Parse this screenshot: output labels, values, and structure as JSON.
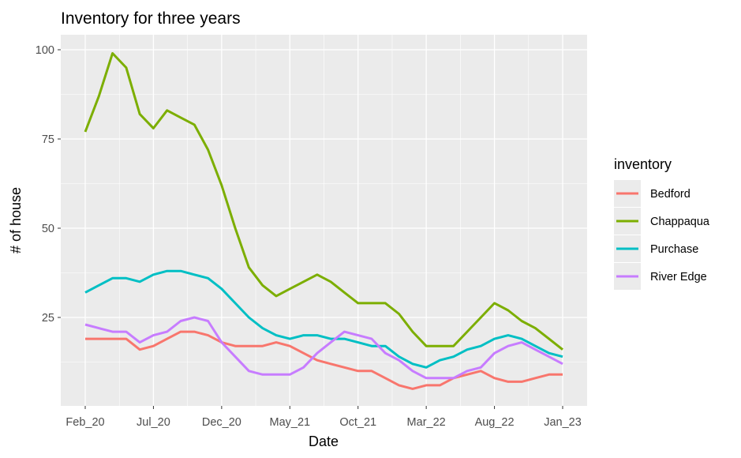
{
  "chart_data": {
    "type": "line",
    "title": "Inventory for three years",
    "xlabel": "Date",
    "ylabel": "# of house",
    "x_ticks": [
      "Feb_20",
      "Jul_20",
      "Dec_20",
      "May_21",
      "Oct_21",
      "Mar_22",
      "Aug_22",
      "Jan_23"
    ],
    "y_ticks": [
      25,
      50,
      75,
      100
    ],
    "ylim": [
      2.5,
      105
    ],
    "x_months": [
      "2020-02",
      "2020-03",
      "2020-04",
      "2020-05",
      "2020-06",
      "2020-07",
      "2020-08",
      "2020-09",
      "2020-10",
      "2020-11",
      "2020-12",
      "2021-01",
      "2021-02",
      "2021-03",
      "2021-04",
      "2021-05",
      "2021-06",
      "2021-07",
      "2021-08",
      "2021-09",
      "2021-10",
      "2021-11",
      "2021-12",
      "2022-01",
      "2022-02",
      "2022-03",
      "2022-04",
      "2022-05",
      "2022-06",
      "2022-07",
      "2022-08",
      "2022-09",
      "2022-10",
      "2022-11",
      "2022-12",
      "2023-01"
    ],
    "legend_title": "inventory",
    "legend_position": "right",
    "grid": true,
    "panel_background": "#ebebeb",
    "series": [
      {
        "name": "Bedford",
        "color": "#F8766D",
        "values": [
          19,
          19,
          19,
          19,
          16,
          17,
          19,
          21,
          21,
          20,
          18,
          17,
          17,
          17,
          18,
          17,
          15,
          13,
          12,
          11,
          10,
          10,
          8,
          6,
          5,
          6,
          6,
          8,
          9,
          10,
          8,
          7,
          7,
          8,
          9,
          9
        ]
      },
      {
        "name": "Chappaqua",
        "color": "#7CAE00",
        "values": [
          77,
          87,
          99,
          95,
          82,
          78,
          83,
          81,
          79,
          72,
          62,
          50,
          39,
          34,
          31,
          33,
          35,
          37,
          35,
          32,
          29,
          29,
          29,
          26,
          21,
          17,
          17,
          17,
          21,
          25,
          29,
          27,
          24,
          22,
          19,
          16
        ]
      },
      {
        "name": "Purchase",
        "color": "#00BFC4",
        "values": [
          32,
          34,
          36,
          36,
          35,
          37,
          38,
          38,
          37,
          36,
          33,
          29,
          25,
          22,
          20,
          19,
          20,
          20,
          19,
          19,
          18,
          17,
          17,
          14,
          12,
          11,
          13,
          14,
          16,
          17,
          19,
          20,
          19,
          17,
          15,
          14
        ]
      },
      {
        "name": "River Edge",
        "color": "#C77CFF",
        "values": [
          23,
          22,
          21,
          21,
          18,
          20,
          21,
          24,
          25,
          24,
          18,
          14,
          10,
          9,
          9,
          9,
          11,
          15,
          18,
          21,
          20,
          19,
          15,
          13,
          10,
          8,
          8,
          8,
          10,
          11,
          15,
          17,
          18,
          16,
          14,
          12
        ]
      }
    ]
  }
}
